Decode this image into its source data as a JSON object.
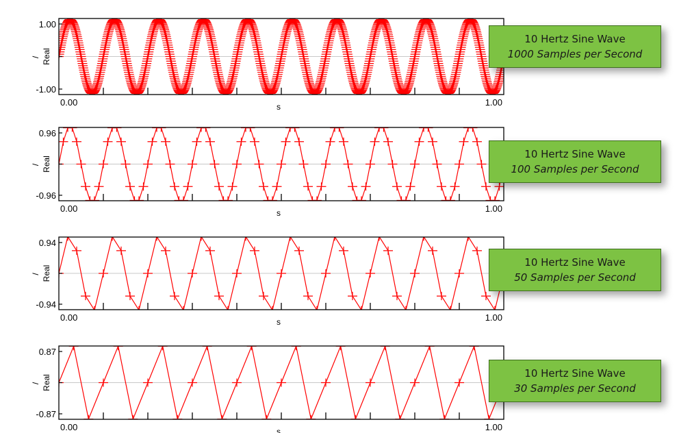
{
  "chart_data": [
    {
      "type": "line",
      "title": "10 Hertz Sine Wave",
      "subtitle": "1000 Samples per Second",
      "frequency_hz": 10,
      "sample_rate": 1000,
      "xlabel": "s",
      "ylabel": "Real",
      "ylabel_unit": "/",
      "xlim": [
        0,
        1
      ],
      "ylim": [
        -1.0,
        1.0
      ],
      "x_ticks": [
        "0.00",
        "1.00"
      ],
      "y_ticks": [
        "1.00",
        "-1.00"
      ],
      "marker": "+",
      "color": "#ff0000",
      "grid": false
    },
    {
      "type": "line",
      "title": "10 Hertz Sine Wave",
      "subtitle": "100 Samples per Second",
      "frequency_hz": 10,
      "sample_rate": 100,
      "xlabel": "s",
      "ylabel": "Real",
      "ylabel_unit": "/",
      "xlim": [
        0,
        1
      ],
      "ylim": [
        -0.96,
        0.96
      ],
      "x_ticks": [
        "0.00",
        "1.00"
      ],
      "y_ticks": [
        "0.96",
        "-0.96"
      ],
      "marker": "+",
      "color": "#ff0000",
      "grid": false
    },
    {
      "type": "line",
      "title": "10 Hertz Sine Wave",
      "subtitle": "50 Samples per Second",
      "frequency_hz": 10,
      "sample_rate": 50,
      "xlabel": "s",
      "ylabel": "Real",
      "ylabel_unit": "/",
      "xlim": [
        0,
        1
      ],
      "ylim": [
        -0.94,
        0.94
      ],
      "x_ticks": [
        "0.00",
        "1.00"
      ],
      "y_ticks": [
        "0.94",
        "-0.94"
      ],
      "marker": "+",
      "color": "#ff0000",
      "grid": false
    },
    {
      "type": "line",
      "title": "10 Hertz Sine Wave",
      "subtitle": "30 Samples per Second",
      "frequency_hz": 10,
      "sample_rate": 30,
      "xlabel": "s",
      "ylabel": "Real",
      "ylabel_unit": "/",
      "xlim": [
        0,
        1
      ],
      "ylim": [
        -0.87,
        0.87
      ],
      "x_ticks": [
        "0.00",
        "1.00"
      ],
      "y_ticks": [
        "0.87",
        "-0.87"
      ],
      "marker": "+",
      "color": "#ff0000",
      "grid": false
    }
  ],
  "colors": {
    "series": "#ff0000",
    "callout_fill": "#7dc243",
    "callout_border": "#3d6e1c",
    "zero_line": "#c8c8c8"
  }
}
